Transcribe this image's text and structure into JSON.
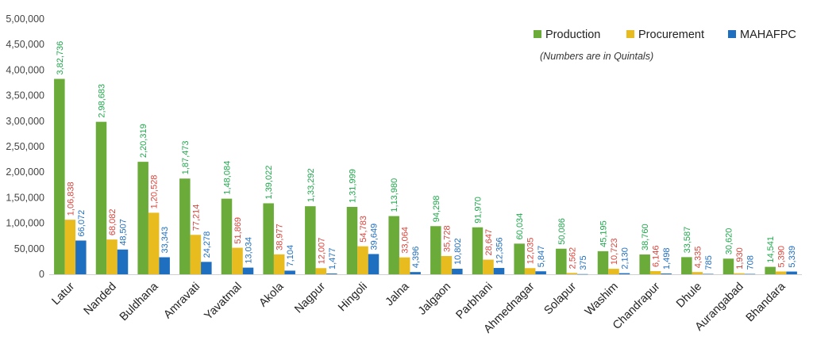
{
  "chart_data": {
    "type": "bar",
    "note": "(Numbers are in Quintals)",
    "ylim": [
      0,
      500000
    ],
    "y_ticks": [
      "0",
      "50,000",
      "1,00,000",
      "1,50,000",
      "2,00,000",
      "2,50,000",
      "3,00,000",
      "3,50,000",
      "4,00,000",
      "4,50,000",
      "5,00,000"
    ],
    "legend_position": "top-right",
    "grid": false,
    "categories": [
      "Latur",
      "Nanded",
      "Buldhana",
      "Amravati",
      "Yavatmal",
      "Akola",
      "Nagpur",
      "Hingoli",
      "Jalna",
      "Jalgaon",
      "Parbhani",
      "Ahmednagar",
      "Solapur",
      "Washim",
      "Chandrapur",
      "Dhule",
      "Aurangabad",
      "Bhandara"
    ],
    "series": [
      {
        "name": "Production",
        "color": "#6aab3a",
        "label_color": "#20a84c",
        "values": [
          382736,
          298683,
          220319,
          187473,
          148084,
          139022,
          133292,
          131999,
          113980,
          94298,
          91970,
          60034,
          50086,
          45195,
          38760,
          33587,
          30620,
          14541
        ],
        "labels": [
          "3,82,736",
          "2,98,683",
          "2,20,319",
          "1,87,473",
          "1,48,084",
          "1,39,022",
          "1,33,292",
          "1,31,999",
          "1,13,980",
          "94,298",
          "91,970",
          "60,034",
          "50,086",
          "45,195",
          "38,760",
          "33,587",
          "30,620",
          "14,541"
        ]
      },
      {
        "name": "Procurement",
        "color": "#e8bb1e",
        "label_color": "#d9443a",
        "values": [
          106838,
          68082,
          120528,
          77214,
          51869,
          38977,
          12007,
          54783,
          33064,
          35728,
          28647,
          12035,
          2562,
          10723,
          6146,
          4335,
          1930,
          5390
        ],
        "labels": [
          "1,06,838",
          "68,082",
          "1,20,528",
          "77,214",
          "51,869",
          "38,977",
          "12,007",
          "54,783",
          "33,064",
          "35,728",
          "28,647",
          "12,035",
          "2,562",
          "10,723",
          "6,146",
          "4,335",
          "1,930",
          "5,390"
        ]
      },
      {
        "name": "MAHAFPC",
        "color": "#1f6fc0",
        "label_color": "#1f6fc0",
        "values": [
          66072,
          48507,
          33343,
          24278,
          13034,
          7104,
          1477,
          39649,
          4396,
          10802,
          12356,
          5847,
          375,
          2130,
          1498,
          785,
          708,
          5339
        ],
        "labels": [
          "66,072",
          "48,507",
          "33,343",
          "24,278",
          "13,034",
          "7,104",
          "1,477",
          "39,649",
          "4,396",
          "10,802",
          "12,356",
          "5,847",
          "375",
          "2,130",
          "1,498",
          "785",
          "708",
          "5,339"
        ]
      }
    ]
  }
}
